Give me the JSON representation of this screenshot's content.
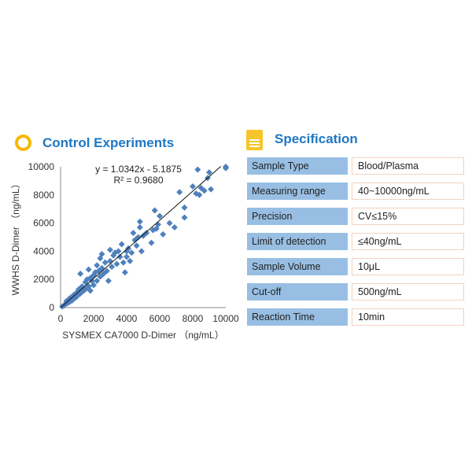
{
  "control": {
    "title": "Control Experiments",
    "icon": "ring-icon"
  },
  "spec": {
    "title": "Specification",
    "icon": "certificate-icon",
    "rows": [
      {
        "label": "Sample  Type",
        "value": "Blood/Plasma"
      },
      {
        "label": "Measuring range",
        "value": "40~10000ng/mL"
      },
      {
        "label": "Precision",
        "value": "CV≤15%"
      },
      {
        "label": "Limit of detection",
        "value": "≤40ng/mL"
      },
      {
        "label": "Sample  Volume",
        "value": "10μL"
      },
      {
        "label": "Cut-off",
        "value": "500ng/mL"
      },
      {
        "label": "Reaction Time",
        "value": "10min"
      }
    ]
  },
  "colors": {
    "accent": "#1f77c4",
    "points": "#4f81bd",
    "label_cell": "#98bfe3",
    "icon": "#f5b800"
  },
  "chart_data": {
    "type": "scatter",
    "xlabel": "SYSMEX  CA7000  D-Dimer  （ng/mL）",
    "ylabel": "WWHS  D-Dimer  （ng/mL）",
    "xlim": [
      0,
      10000
    ],
    "ylim": [
      0,
      10000
    ],
    "xticks": [
      "0",
      "2000",
      "4000",
      "6000",
      "8000",
      "10000"
    ],
    "yticks": [
      "0",
      "2000",
      "4000",
      "6000",
      "8000",
      "10000"
    ],
    "grid": false,
    "trendline": {
      "slope": 1.0342,
      "intercept": -5.1875,
      "equation": "y = 1.0342x - 5.1875",
      "r2": "R² = 0.9680"
    },
    "points": [
      [
        100,
        80
      ],
      [
        200,
        150
      ],
      [
        300,
        250
      ],
      [
        350,
        450
      ],
      [
        400,
        300
      ],
      [
        500,
        600
      ],
      [
        550,
        400
      ],
      [
        600,
        700
      ],
      [
        700,
        500
      ],
      [
        800,
        900
      ],
      [
        900,
        700
      ],
      [
        1000,
        1100
      ],
      [
        1000,
        800
      ],
      [
        1100,
        1300
      ],
      [
        1200,
        1000
      ],
      [
        1200,
        2400
      ],
      [
        1300,
        1500
      ],
      [
        1400,
        1200
      ],
      [
        1500,
        1800
      ],
      [
        1500,
        1300
      ],
      [
        1600,
        2000
      ],
      [
        1700,
        1500
      ],
      [
        1700,
        2700
      ],
      [
        1800,
        2100
      ],
      [
        1800,
        1200
      ],
      [
        1900,
        1900
      ],
      [
        2000,
        2300
      ],
      [
        2000,
        1600
      ],
      [
        2100,
        2500
      ],
      [
        2200,
        1900
      ],
      [
        2200,
        3000
      ],
      [
        2300,
        2600
      ],
      [
        2400,
        2200
      ],
      [
        2400,
        3500
      ],
      [
        2500,
        2800
      ],
      [
        2500,
        3800
      ],
      [
        2600,
        2400
      ],
      [
        2700,
        3200
      ],
      [
        2800,
        2600
      ],
      [
        2900,
        1900
      ],
      [
        3000,
        3300
      ],
      [
        3000,
        4100
      ],
      [
        3100,
        2900
      ],
      [
        3200,
        3700
      ],
      [
        3300,
        3900
      ],
      [
        3400,
        3100
      ],
      [
        3500,
        4000
      ],
      [
        3600,
        3600
      ],
      [
        3700,
        4500
      ],
      [
        3800,
        3200
      ],
      [
        3900,
        2500
      ],
      [
        4000,
        4000
      ],
      [
        4000,
        3600
      ],
      [
        4100,
        4200
      ],
      [
        4200,
        3300
      ],
      [
        4300,
        3900
      ],
      [
        4400,
        5300
      ],
      [
        4500,
        4800
      ],
      [
        4600,
        4400
      ],
      [
        4700,
        5000
      ],
      [
        4800,
        6100
      ],
      [
        4800,
        5700
      ],
      [
        4900,
        4000
      ],
      [
        5000,
        5100
      ],
      [
        5200,
        5300
      ],
      [
        5500,
        4600
      ],
      [
        5600,
        5500
      ],
      [
        5700,
        6900
      ],
      [
        5800,
        5600
      ],
      [
        5900,
        5900
      ],
      [
        6000,
        6500
      ],
      [
        6200,
        5200
      ],
      [
        6600,
        6000
      ],
      [
        6900,
        5700
      ],
      [
        7200,
        8200
      ],
      [
        7500,
        7100
      ],
      [
        7500,
        6400
      ],
      [
        8000,
        8600
      ],
      [
        8200,
        8100
      ],
      [
        8300,
        9800
      ],
      [
        8400,
        8000
      ],
      [
        8500,
        8500
      ],
      [
        8700,
        8300
      ],
      [
        8900,
        9200
      ],
      [
        9000,
        9600
      ],
      [
        9100,
        8400
      ],
      [
        10000,
        9900
      ],
      [
        10000,
        10000
      ]
    ]
  }
}
